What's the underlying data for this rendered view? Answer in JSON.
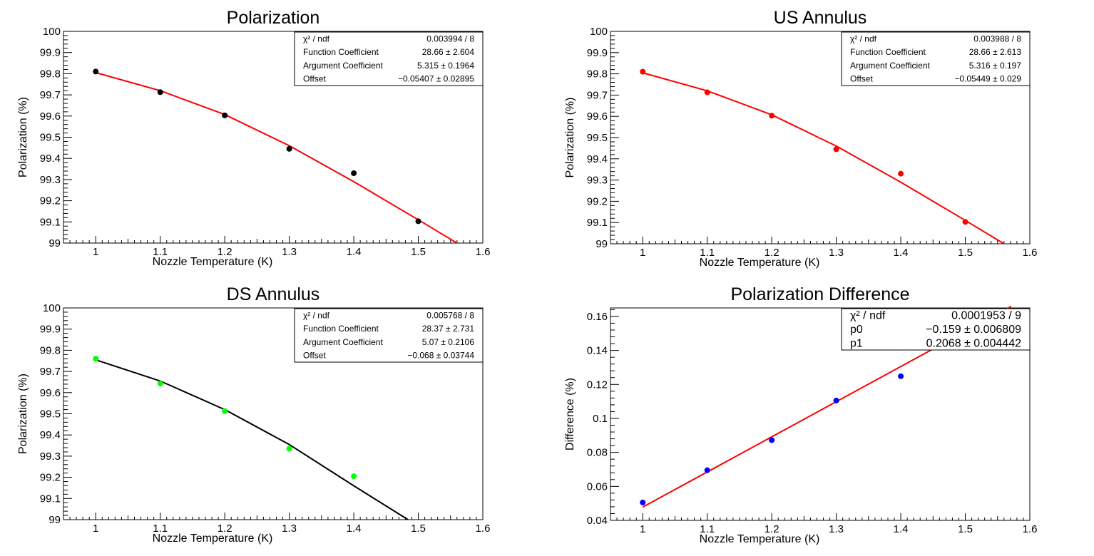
{
  "chart_data": [
    {
      "type": "scatter",
      "title": "Polarization",
      "xlabel": "Nozzle Temperature (K)",
      "ylabel": "Polarization (%)",
      "xlim": [
        0.95,
        1.6
      ],
      "ylim": [
        99,
        100
      ],
      "x_ticks": [
        "1",
        "1.1",
        "1.2",
        "1.3",
        "1.4",
        "1.5",
        "1.6"
      ],
      "y_ticks": [
        "99",
        "99.1",
        "99.2",
        "99.3",
        "99.4",
        "99.5",
        "99.6",
        "99.7",
        "99.8",
        "99.9",
        "100"
      ],
      "marker_color": "#000000",
      "fit_color": "#ff0000",
      "x": [
        1.0,
        1.1,
        1.2,
        1.3,
        1.4,
        1.5
      ],
      "y": [
        99.81,
        99.713,
        99.603,
        99.445,
        99.33,
        99.103
      ],
      "fit_curve": {
        "x": [
          1.0,
          1.1,
          1.2,
          1.3,
          1.4,
          1.5,
          1.56
        ],
        "y": [
          99.805,
          99.72,
          99.607,
          99.46,
          99.29,
          99.11,
          99.0
        ]
      },
      "stats": [
        {
          "label": "χ² / ndf",
          "value": "0.003994 / 8"
        },
        {
          "label": "Function Coefficient",
          "value": "28.66 ± 2.604"
        },
        {
          "label": "Argument Coefficient",
          "value": "5.315 ± 0.1964"
        },
        {
          "label": "Offset",
          "value": "−0.05407 ± 0.02895"
        }
      ]
    },
    {
      "type": "scatter",
      "title": "US Annulus",
      "xlabel": "Nozzle Temperature (K)",
      "ylabel": "Polarization (%)",
      "xlim": [
        0.95,
        1.6
      ],
      "ylim": [
        99,
        100
      ],
      "x_ticks": [
        "1",
        "1.1",
        "1.2",
        "1.3",
        "1.4",
        "1.5",
        "1.6"
      ],
      "y_ticks": [
        "99",
        "99.1",
        "99.2",
        "99.3",
        "99.4",
        "99.5",
        "99.6",
        "99.7",
        "99.8",
        "99.9",
        "100"
      ],
      "marker_color": "#ff0000",
      "fit_color": "#ff0000",
      "x": [
        1.0,
        1.1,
        1.2,
        1.3,
        1.4,
        1.5
      ],
      "y": [
        99.81,
        99.713,
        99.603,
        99.445,
        99.33,
        99.103
      ],
      "fit_curve": {
        "x": [
          1.0,
          1.1,
          1.2,
          1.3,
          1.4,
          1.5,
          1.56
        ],
        "y": [
          99.805,
          99.72,
          99.607,
          99.46,
          99.29,
          99.11,
          99.0
        ]
      },
      "stats": [
        {
          "label": "χ² / ndf",
          "value": "0.003988 / 8"
        },
        {
          "label": "Function Coefficient",
          "value": "28.66 ± 2.613"
        },
        {
          "label": "Argument Coefficient",
          "value": "5.316 ± 0.197"
        },
        {
          "label": "Offset",
          "value": "−0.05449 ± 0.029"
        }
      ]
    },
    {
      "type": "scatter",
      "title": "DS Annulus",
      "xlabel": "Nozzle Temperature (K)",
      "ylabel": "Polarization (%)",
      "xlim": [
        0.95,
        1.6
      ],
      "ylim": [
        99,
        100
      ],
      "x_ticks": [
        "1",
        "1.1",
        "1.2",
        "1.3",
        "1.4",
        "1.5",
        "1.6"
      ],
      "y_ticks": [
        "99",
        "99.1",
        "99.2",
        "99.3",
        "99.4",
        "99.5",
        "99.6",
        "99.7",
        "99.8",
        "99.9",
        "100"
      ],
      "marker_color": "#00ff00",
      "fit_color": "#000000",
      "x": [
        1.0,
        1.1,
        1.2,
        1.3,
        1.4
      ],
      "y": [
        99.76,
        99.643,
        99.513,
        99.335,
        99.205
      ],
      "fit_curve": {
        "x": [
          1.0,
          1.1,
          1.2,
          1.3,
          1.4,
          1.484
        ],
        "y": [
          99.755,
          99.655,
          99.52,
          99.355,
          99.16,
          99.0
        ]
      },
      "stats": [
        {
          "label": "χ² / ndf",
          "value": "0.005768 / 8"
        },
        {
          "label": "Function Coefficient",
          "value": "28.37 ± 2.731"
        },
        {
          "label": "Argument Coefficient",
          "value": "5.07 ± 0.2106"
        },
        {
          "label": "Offset",
          "value": "−0.068 ± 0.03744"
        }
      ]
    },
    {
      "type": "scatter",
      "title": "Polarization Difference",
      "xlabel": "Nozzle Temperature (K)",
      "ylabel": "Difference (%)",
      "xlim": [
        0.95,
        1.6
      ],
      "ylim": [
        0.04,
        0.165
      ],
      "x_ticks": [
        "1",
        "1.1",
        "1.2",
        "1.3",
        "1.4",
        "1.5",
        "1.6"
      ],
      "y_ticks": [
        "0.04",
        "0.06",
        "0.08",
        "0.1",
        "0.12",
        "0.14",
        "0.16"
      ],
      "marker_color": "#0000ff",
      "fit_color": "#ff0000",
      "x": [
        1.0,
        1.1,
        1.2,
        1.3,
        1.4,
        1.5
      ],
      "y": [
        0.0505,
        0.0695,
        0.0872,
        0.1105,
        0.1248,
        0.1535
      ],
      "fit_curve": {
        "x": [
          1.0,
          1.571
        ],
        "y": [
          0.0478,
          0.1659
        ]
      },
      "stats": [
        {
          "label": "χ² / ndf",
          "value": "0.0001953 / 9"
        },
        {
          "label": "p0",
          "value": "−0.159 ± 0.006809"
        },
        {
          "label": "p1",
          "value": "0.2068 ± 0.004442"
        }
      ]
    }
  ]
}
